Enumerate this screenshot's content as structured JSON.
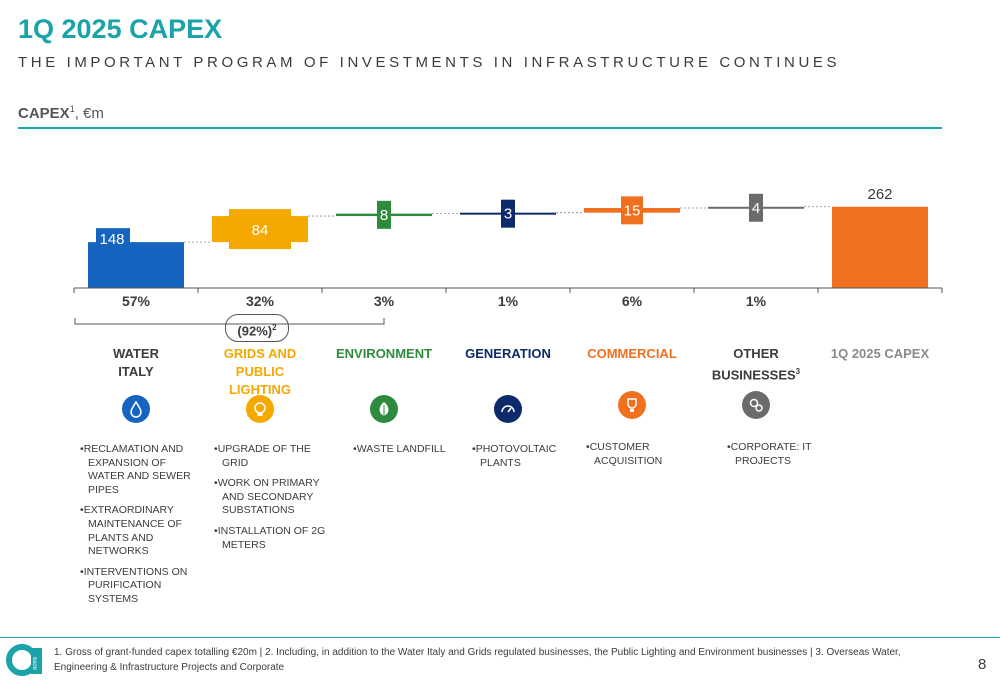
{
  "header": {
    "title": "1Q 2025 CAPEX",
    "subtitle": "THE IMPORTANT PROGRAM OF INVESTMENTS IN INFRASTRUCTURE CONTINUES",
    "capex_label_bold": "CAPEX",
    "capex_label_sup": "1",
    "capex_label_unit": ", €m"
  },
  "chart_data": {
    "type": "bar",
    "subtype": "waterfall",
    "categories": [
      "WATER ITALY",
      "GRIDS AND PUBLIC LIGHTING",
      "ENVIRONMENT",
      "GENERATION",
      "COMMERCIAL",
      "OTHER BUSINESSES",
      "1Q 2025 CAPEX"
    ],
    "values": [
      148,
      84,
      8,
      3,
      15,
      4,
      262
    ],
    "value_labels": [
      "148",
      "84",
      "8",
      "3",
      "15",
      "4",
      "262"
    ],
    "percentages": [
      "57%",
      "32%",
      "3%",
      "1%",
      "6%",
      "1%",
      ""
    ],
    "colors": [
      "#1565c0",
      "#f5a800",
      "#2e8b3e",
      "#0d2a6b",
      "#f07020",
      "#6b6b6b",
      "#f07020"
    ],
    "total_index": 6,
    "grouping_label": "(92%)",
    "grouping_sup": "2",
    "ylim": [
      0,
      290
    ],
    "xlabel": "",
    "ylabel": ""
  },
  "categories_display": [
    {
      "lines": [
        "WATER",
        "ITALY"
      ],
      "sup": "",
      "color": "#3c3c3c",
      "icon": "water-drop-icon",
      "icon_color": "#1565c0"
    },
    {
      "lines": [
        "GRIDS AND PUBLIC",
        "LIGHTING"
      ],
      "sup": "",
      "color": "#f5a800",
      "icon": "lightbulb-icon",
      "icon_color": "#f5a800"
    },
    {
      "lines": [
        "ENVIRONMENT"
      ],
      "sup": "",
      "color": "#2e8b3e",
      "icon": "leaf-icon",
      "icon_color": "#2e8b3e"
    },
    {
      "lines": [
        "GENERATION"
      ],
      "sup": "",
      "color": "#0d2a6b",
      "icon": "gauge-icon",
      "icon_color": "#0d2a6b"
    },
    {
      "lines": [
        "COMMERCIAL"
      ],
      "sup": "",
      "color": "#f07020",
      "icon": "trophy-icon",
      "icon_color": "#f07020"
    },
    {
      "lines": [
        "OTHER",
        "BUSINESSES"
      ],
      "sup": "3",
      "color": "#3c3c3c",
      "icon": "gears-icon",
      "icon_color": "#6b6b6b"
    },
    {
      "lines": [
        "1Q 2025 CAPEX"
      ],
      "sup": "",
      "color": "#8a8a8a",
      "icon": "",
      "icon_color": ""
    }
  ],
  "bullets": {
    "water": [
      "RECLAMATION AND EXPANSION OF WATER AND SEWER PIPES",
      "EXTRAORDINARY MAINTENANCE OF PLANTS AND NETWORKS",
      "INTERVENTIONS ON PURIFICATION SYSTEMS"
    ],
    "grids": [
      "UPGRADE OF THE GRID",
      "WORK ON PRIMARY AND SECONDARY SUBSTATIONS",
      "INSTALLATION OF 2G METERS"
    ],
    "environment": [
      "WASTE LANDFILL"
    ],
    "generation": [
      "PHOTOVOLTAIC PLANTS"
    ],
    "commercial": [
      "CUSTOMER ACQUISITION"
    ],
    "other": [
      "CORPORATE: IT PROJECTS"
    ]
  },
  "footer": {
    "footnote": "1. Gross of grant-funded capex totalling €20m | 2. Including, in addition to the Water Italy and Grids regulated businesses, the Public Lighting and Environment businesses | 3. Overseas Water, Engineering & Infrastructure Projects and Corporate",
    "page_number": "8",
    "logo_text": "acea"
  }
}
